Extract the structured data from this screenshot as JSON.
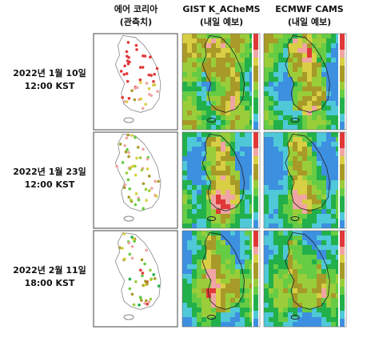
{
  "columns": [
    {
      "title": "에어 코리아",
      "subtitle": "(관측치)"
    },
    {
      "title": "GIST K_ACheMS",
      "subtitle": "(내일 예보)"
    },
    {
      "title": "ECMWF CAMS",
      "subtitle": "(내일 예보)"
    }
  ],
  "rows": [
    {
      "date": "2022년 1월 10일",
      "time": "12:00 KST"
    },
    {
      "date": "2022년 1월 23일",
      "time": "12:00 KST"
    },
    {
      "date": "2022년 2월 11일",
      "time": "18:00 KST"
    }
  ]
}
